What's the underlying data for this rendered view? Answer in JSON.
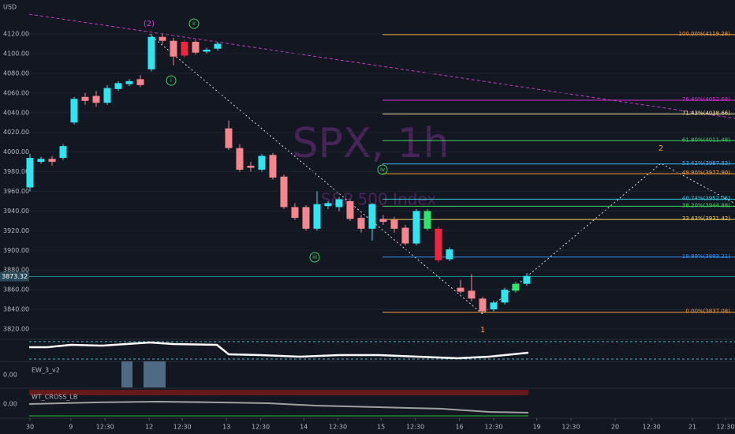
{
  "chart_data": {
    "type": "candlestick",
    "title": "SPX, 1h",
    "subtitle": "S&P 500 Index",
    "currency": "USD",
    "x": [
      0,
      1,
      2,
      3,
      4,
      5,
      6,
      7,
      8,
      9,
      10,
      11,
      12,
      13,
      14,
      15,
      16,
      17,
      18,
      19,
      20,
      21,
      22,
      23,
      24,
      25,
      26,
      27,
      28,
      29,
      30,
      31,
      32,
      33,
      34,
      35,
      36,
      37,
      38,
      39,
      40,
      41,
      42,
      43,
      44,
      45
    ],
    "open": [
      3964,
      3990,
      3993,
      3994,
      4030,
      4056,
      4057,
      4050,
      4064,
      4069,
      4074,
      4084,
      4117,
      4113,
      4112,
      4112,
      4102,
      4105,
      4024,
      4004,
      3986,
      3982,
      3997,
      3975,
      3944,
      3944,
      3922,
      3945,
      3944,
      3950,
      3933,
      3922,
      3932,
      3931,
      3923,
      3907,
      3922,
      3922,
      3891,
      3862,
      3859,
      3851,
      3840,
      3847,
      3859,
      3866
    ],
    "high": [
      3998,
      3995,
      3996,
      4008,
      4056,
      4060,
      4062,
      4068,
      4072,
      4074,
      4078,
      4120,
      4121,
      4116,
      4114,
      4114,
      4106,
      4112,
      4032,
      4008,
      3990,
      3998,
      3999,
      3977,
      3948,
      3946,
      3960,
      3950,
      3954,
      3952,
      3936,
      3948,
      3936,
      3934,
      3926,
      3942,
      3942,
      3924,
      3903,
      3870,
      3876,
      3853,
      3849,
      3862,
      3868,
      3877
    ],
    "low": [
      3960,
      3988,
      3986,
      3992,
      4028,
      4048,
      4046,
      4048,
      4062,
      4067,
      4066,
      4082,
      4110,
      4088,
      4096,
      4099,
      4100,
      4103,
      4002,
      3980,
      3980,
      3980,
      3972,
      3942,
      3931,
      3920,
      3920,
      3942,
      3940,
      3930,
      3918,
      3910,
      3926,
      3918,
      3905,
      3905,
      3920,
      3888,
      3889,
      3856,
      3848,
      3836,
      3838,
      3845,
      3857,
      3864
    ],
    "close": [
      3994,
      3993,
      3990,
      4006,
      4054,
      4052,
      4050,
      4065,
      4070,
      4072,
      4068,
      4117,
      4113,
      4097,
      4098,
      4101,
      4104,
      4110,
      4004,
      3982,
      3984,
      3996,
      3974,
      3944,
      3933,
      3922,
      3947,
      3948,
      3952,
      3932,
      3922,
      3947,
      3929,
      3922,
      3907,
      3940,
      3940,
      3890,
      3901,
      3858,
      3851,
      3838,
      3847,
      3860,
      3866,
      3874
    ],
    "colors": [
      "#2ee6f0",
      "#2ee6f0",
      "#f7858d",
      "#2ee6f0",
      "#2ee6f0",
      "#f7858d",
      "#f7858d",
      "#2ee6f0",
      "#2ee6f0",
      "#2ee6f0",
      "#f7858d",
      "#2ee6f0",
      "#f7858d",
      "#f7858d",
      "#f2233c",
      "#f7858d",
      "#2ee6f0",
      "#2ee6f0",
      "#f7858d",
      "#f7858d",
      "#f7858d",
      "#2ee6f0",
      "#f7858d",
      "#f7858d",
      "#f7858d",
      "#f7858d",
      "#2ee6f0",
      "#2ee6f0",
      "#2ee6f0",
      "#f7858d",
      "#f7858d",
      "#2ee6f0",
      "#f7858d",
      "#f7858d",
      "#f7858d",
      "#2ee6f0",
      "#2ee66b",
      "#f2233c",
      "#2ee6f0",
      "#f7858d",
      "#f7858d",
      "#f7858d",
      "#2ee6f0",
      "#2ee6f0",
      "#2ee66b",
      "#2ee6f0"
    ],
    "xlim": [
      -0.07,
      63.86
    ],
    "xticks": [
      {
        "value": 0,
        "label": "30"
      },
      {
        "value": 3.7,
        "label": "9"
      },
      {
        "value": 6.8,
        "label": "12:30"
      },
      {
        "value": 10.8,
        "label": "12"
      },
      {
        "value": 13.8,
        "label": "12:30"
      },
      {
        "value": 17.8,
        "label": "13"
      },
      {
        "value": 20.9,
        "label": "12:30"
      },
      {
        "value": 24.8,
        "label": "14"
      },
      {
        "value": 27.9,
        "label": "12:30"
      },
      {
        "value": 31.8,
        "label": "15"
      },
      {
        "value": 34.9,
        "label": "12:30"
      },
      {
        "value": 38.9,
        "label": "16"
      },
      {
        "value": 42,
        "label": "12:30"
      },
      {
        "value": 45.9,
        "label": "19"
      },
      {
        "value": 49,
        "label": "12:30"
      },
      {
        "value": 53,
        "label": "20"
      },
      {
        "value": 56.3,
        "label": "12:30"
      },
      {
        "value": 60,
        "label": "21"
      },
      {
        "value": 63,
        "label": "12:30"
      }
    ],
    "ylim": [
      3809.6,
      4154.5
    ],
    "yticks": [
      {
        "value": 4120,
        "label": "4120.00"
      },
      {
        "value": 4100,
        "label": "4100.00"
      },
      {
        "value": 4080,
        "label": "4080.00"
      },
      {
        "value": 4060,
        "label": "4060.00"
      },
      {
        "value": 4040,
        "label": "4040.00"
      },
      {
        "value": 4020,
        "label": "4020.00"
      },
      {
        "value": 4000,
        "label": "4000.00"
      },
      {
        "value": 3980,
        "label": "3980.00"
      },
      {
        "value": 3960,
        "label": "3960.00"
      },
      {
        "value": 3940,
        "label": "3940.00"
      },
      {
        "value": 3920,
        "label": "3920.00"
      },
      {
        "value": 3900,
        "label": "3900.00"
      },
      {
        "value": 3880,
        "label": "3880.00"
      },
      {
        "value": 3860,
        "label": "3860.00"
      },
      {
        "value": 3840,
        "label": "3840.00"
      },
      {
        "value": 3820,
        "label": "3820.00"
      }
    ],
    "last_price": {
      "value": 3873.32,
      "label": "3873.32"
    },
    "fib_levels": [
      {
        "value": 4119.28,
        "label": "100.00%(4119.28)",
        "color": "#f0a040"
      },
      {
        "value": 4052.68,
        "label": "76.40%(4052.68)",
        "color": "#d030d0"
      },
      {
        "value": 4038.66,
        "label": "71.43%(4038.66)",
        "color": "#f0e0a0"
      },
      {
        "value": 4011.48,
        "label": "61.80%(4011.48)",
        "color": "#40d060"
      },
      {
        "value": 3987.83,
        "label": "53.42%(3987.83)",
        "color": "#40b0f0"
      },
      {
        "value": 3977.9,
        "label": "49.90%(3977.90)",
        "color": "#f0a040"
      },
      {
        "value": 3952.05,
        "label": "40.74%(3952.05)",
        "color": "#30d0e0"
      },
      {
        "value": 3944.88,
        "label": "38.20%(3944.88)",
        "color": "#40d060"
      },
      {
        "value": 3931.42,
        "label": "33.43%(3931.42)",
        "color": "#f0d060"
      },
      {
        "value": 3893.21,
        "label": "19.89%(3893.21)",
        "color": "#3090f0"
      },
      {
        "value": 3837.08,
        "label": "0.00%(3837.08)",
        "color": "#f0a040"
      }
    ],
    "annotations": [
      "(2)",
      "ii",
      "i",
      "iii",
      "iv",
      "1",
      "2"
    ],
    "panes": [
      {
        "name": "EW_3_v2",
        "zero_label": "0.00"
      },
      {
        "name": "WT_CROSS_LB",
        "zero_label": "0.00"
      }
    ]
  }
}
